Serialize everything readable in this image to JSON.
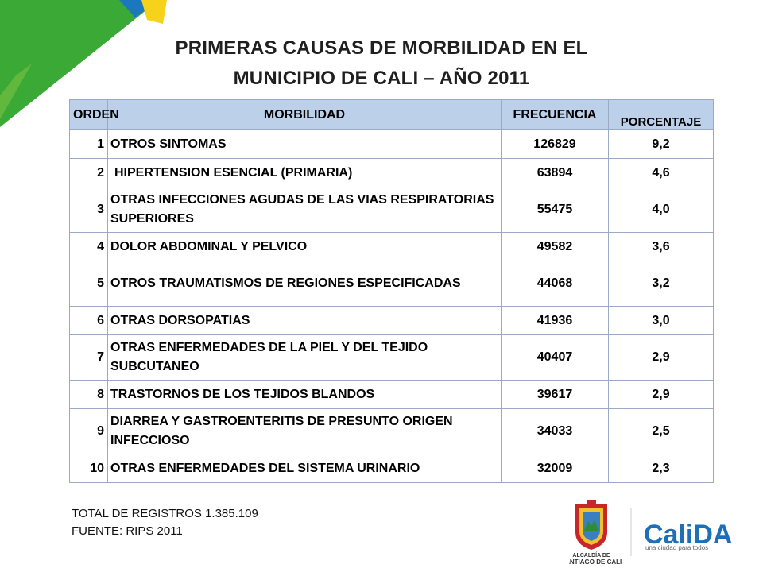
{
  "title": {
    "line1": "PRIMERAS CAUSAS DE MORBILIDAD EN EL",
    "line2": "MUNICIPIO DE CALI – AÑO 2011"
  },
  "table": {
    "headers": {
      "orden": "ORDEN",
      "morbilidad": "MORBILIDAD",
      "frecuencia": "FRECUENCIA",
      "porcentaje": "PORCENTAJE"
    },
    "rows": [
      {
        "orden": "1",
        "morbilidad": "OTROS SINTOMAS",
        "frecuencia": "126829",
        "porcentaje": "9,2"
      },
      {
        "orden": "2",
        "morbilidad": "HIPERTENSION ESENCIAL (PRIMARIA)",
        "frecuencia": "63894",
        "porcentaje": "4,6"
      },
      {
        "orden": "3",
        "morbilidad": "OTRAS INFECCIONES AGUDAS DE LAS VIAS RESPIRATORIAS SUPERIORES",
        "frecuencia": "55475",
        "porcentaje": "4,0"
      },
      {
        "orden": "4",
        "morbilidad": "DOLOR ABDOMINAL Y PELVICO",
        "frecuencia": "49582",
        "porcentaje": "3,6"
      },
      {
        "orden": "5",
        "morbilidad": "OTROS TRAUMATISMOS DE REGIONES ESPECIFICADAS",
        "frecuencia": "44068",
        "porcentaje": "3,2"
      },
      {
        "orden": "6",
        "morbilidad": "OTRAS DORSOPATIAS",
        "frecuencia": "41936",
        "porcentaje": "3,0"
      },
      {
        "orden": "7",
        "morbilidad": "OTRAS ENFERMEDADES DE LA PIEL Y DEL TEJIDO SUBCUTANEO",
        "frecuencia": "40407",
        "porcentaje": "2,9"
      },
      {
        "orden": "8",
        "morbilidad": "TRASTORNOS DE LOS TEJIDOS BLANDOS",
        "frecuencia": "39617",
        "porcentaje": "2,9"
      },
      {
        "orden": "9",
        "morbilidad": "DIARREA Y GASTROENTERITIS DE PRESUNTO ORIGEN INFECCIOSO",
        "frecuencia": "34033",
        "porcentaje": "2,5"
      },
      {
        "orden": "10",
        "morbilidad": "OTRAS ENFERMEDADES DEL SISTEMA URINARIO",
        "frecuencia": "32009",
        "porcentaje": "2,3"
      }
    ]
  },
  "footer": {
    "total": "TOTAL DE REGISTROS  1.385.109",
    "fuente": "FUENTE: RIPS 2011"
  },
  "logos": {
    "alcaldia_line1": "ALCALDÍA DE",
    "alcaldia_line2": "SANTIAGO DE CALI",
    "calida_word": "CaliDA",
    "calida_tagline": "una ciudad para todos"
  },
  "colors": {
    "header_bg": "#bdd0ea",
    "border": "#9aa9c4",
    "corner_green": "#3aa935",
    "corner_yellow": "#f6d21a",
    "corner_blue": "#1b78be",
    "calida_blue": "#1d6fb8",
    "calida_red": "#e23a2c"
  }
}
